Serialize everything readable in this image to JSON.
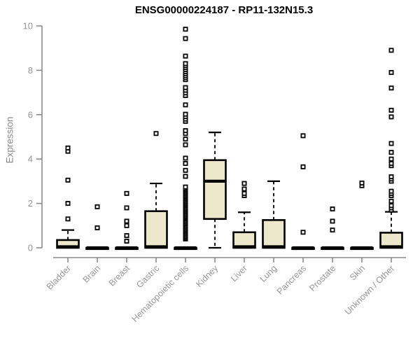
{
  "page": {
    "background": "#ffffff"
  },
  "chart_data": {
    "type": "boxplot",
    "title": "ENSG00000224187 - RP11-132N15.3",
    "ylabel": "Expression",
    "xlabel": "",
    "ylim": [
      0,
      10
    ],
    "yticks": [
      0,
      2,
      4,
      6,
      8,
      10
    ],
    "grid": false,
    "legend": "none",
    "colors": {
      "box_fill": "#ede7cb",
      "box_stroke": "#000000",
      "median": "#000000",
      "whisker": "#000000",
      "outlier_stroke": "#000000",
      "outlier_fill": "#ffffff",
      "axis": "#8a8a8a",
      "tick_label": "#969696",
      "title": "#000000"
    },
    "categories": [
      "Bladder",
      "Brain",
      "Breast",
      "Gastric",
      "Hematopoietic cells",
      "Kidney",
      "Liver",
      "Lung",
      "Pancreas",
      "Prostate",
      "Skin",
      "Unknown / Other"
    ],
    "series": [
      {
        "category": "Bladder",
        "whisker_low": 0,
        "q1": 0,
        "median": 0.05,
        "q3": 0.35,
        "whisker_high": 0.8,
        "outliers": [
          1.3,
          2.0,
          3.05,
          4.35,
          4.5
        ]
      },
      {
        "category": "Brain",
        "whisker_low": 0,
        "q1": 0,
        "median": 0,
        "q3": 0,
        "whisker_high": 0,
        "outliers": [
          0.9,
          1.85
        ]
      },
      {
        "category": "Breast",
        "whisker_low": 0,
        "q1": 0,
        "median": 0,
        "q3": 0,
        "whisker_high": 0,
        "outliers": [
          0.3,
          0.55,
          1.0,
          1.2,
          1.8,
          2.45
        ]
      },
      {
        "category": "Gastric",
        "whisker_low": 0,
        "q1": 0,
        "median": 0.05,
        "q3": 1.65,
        "whisker_high": 2.9,
        "outliers": [
          5.15
        ]
      },
      {
        "category": "Hematopoietic cells",
        "whisker_low": 0,
        "q1": 0,
        "median": 0,
        "q3": 0,
        "whisker_high": 0,
        "outliers": [
          0.4,
          0.46,
          0.52,
          0.58,
          0.64,
          0.7,
          0.76,
          0.82,
          0.88,
          0.94,
          1.0,
          1.06,
          1.12,
          1.18,
          1.24,
          1.3,
          1.36,
          1.42,
          1.48,
          1.54,
          1.6,
          1.66,
          1.72,
          1.78,
          1.84,
          1.9,
          1.96,
          2.02,
          2.08,
          2.14,
          2.2,
          2.26,
          2.32,
          2.38,
          2.44,
          2.5,
          2.56,
          2.62,
          2.68,
          2.74,
          3.22,
          3.49,
          3.8,
          4.04,
          4.64,
          4.9,
          5.15,
          5.28,
          5.7,
          5.8,
          5.91,
          6.02,
          6.44,
          6.86,
          6.98,
          7.1,
          7.22,
          7.58,
          7.67,
          7.76,
          7.85,
          7.94,
          8.03,
          8.12,
          8.21,
          8.3,
          8.64,
          9.43,
          9.85
        ]
      },
      {
        "category": "Kidney",
        "whisker_low": 0,
        "q1": 1.3,
        "median": 3.0,
        "q3": 3.95,
        "whisker_high": 5.2,
        "outliers": []
      },
      {
        "category": "Liver",
        "whisker_low": 0,
        "q1": 0,
        "median": 0.05,
        "q3": 0.7,
        "whisker_high": 1.6,
        "outliers": [
          2.35,
          2.45,
          2.65,
          2.9
        ]
      },
      {
        "category": "Lung",
        "whisker_low": 0,
        "q1": 0,
        "median": 0.05,
        "q3": 1.25,
        "whisker_high": 3.0,
        "outliers": []
      },
      {
        "category": "Pancreas",
        "whisker_low": 0,
        "q1": 0,
        "median": 0,
        "q3": 0,
        "whisker_high": 0,
        "outliers": [
          0.7,
          3.65,
          5.05
        ]
      },
      {
        "category": "Prostate",
        "whisker_low": 0,
        "q1": 0,
        "median": 0,
        "q3": 0,
        "whisker_high": 0,
        "outliers": [
          0.8,
          1.2,
          1.75
        ]
      },
      {
        "category": "Skin",
        "whisker_low": 0,
        "q1": 0,
        "median": 0,
        "q3": 0,
        "whisker_high": 0,
        "outliers": [
          2.8,
          2.92
        ]
      },
      {
        "category": "Unknown / Other",
        "whisker_low": 0,
        "q1": 0,
        "median": 0.05,
        "q3": 0.68,
        "whisker_high": 1.62,
        "outliers": [
          1.7,
          1.8,
          1.9,
          2.1,
          2.35,
          2.45,
          2.55,
          3.0,
          3.1,
          3.2,
          3.7,
          3.8,
          4.0,
          4.3,
          4.7,
          5.9,
          6.2,
          7.2,
          7.9,
          8.9
        ]
      }
    ],
    "layout": {
      "plot_top": 37,
      "plot_bottom": 354,
      "axis_x": 60,
      "axis_baseline_y": 368,
      "first_center": 97,
      "center_step": 42,
      "box_half_width": 15.5
    }
  }
}
